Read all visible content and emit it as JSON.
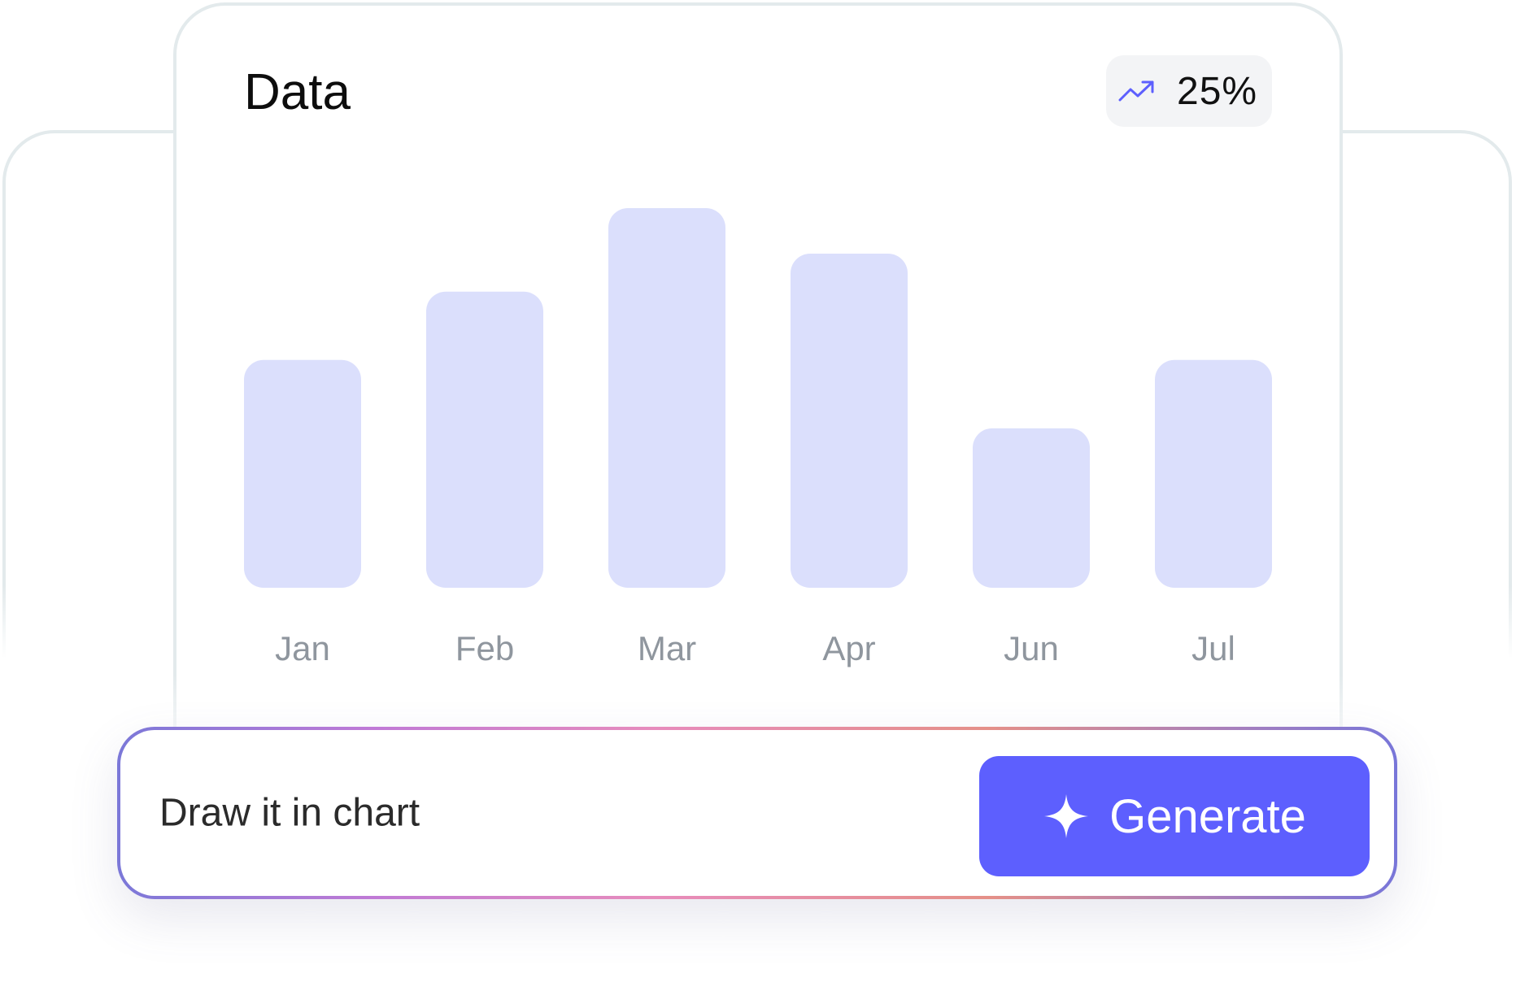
{
  "card": {
    "title": "Data"
  },
  "badge": {
    "icon": "trend-up-icon",
    "value": "25%",
    "icon_color": "#5d5ffe"
  },
  "prompt": {
    "text": "Draw it in chart"
  },
  "generate": {
    "label": "Generate",
    "icon": "sparkle-icon",
    "color": "#5d5ffe"
  },
  "chart_data": {
    "type": "bar",
    "categories": [
      "Jan",
      "Feb",
      "Mar",
      "Apr",
      "Jun",
      "Jul"
    ],
    "values": [
      60,
      78,
      100,
      88,
      42,
      60
    ],
    "ylim": [
      0,
      100
    ],
    "grid": false,
    "bar_color": "#dbdffc",
    "tick_color": "#8f969e"
  }
}
